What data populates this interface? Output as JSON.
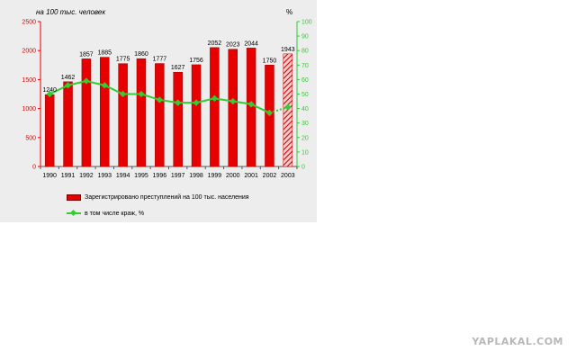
{
  "chart_data": {
    "type": "bar",
    "left_axis_label": "на 100 тыс. человек",
    "right_axis_label": "%",
    "categories": [
      "1990",
      "1991",
      "1992",
      "1993",
      "1994",
      "1995",
      "1996",
      "1997",
      "1998",
      "1999",
      "2000",
      "2001",
      "2002",
      "2003"
    ],
    "series": [
      {
        "name": "Зарегистрировано преступлений на 100 тыс. населения",
        "type": "bar",
        "axis": "left",
        "values": [
          1240,
          1462,
          1857,
          1885,
          1775,
          1860,
          1777,
          1627,
          1756,
          2052,
          2023,
          2044,
          1750,
          1943
        ],
        "labels": [
          "1240",
          "1462",
          "1857",
          "1885",
          "1775",
          "1860",
          "1777",
          "1627",
          "1756",
          "2052",
          "2023",
          "2044",
          "1750",
          "1943"
        ],
        "color": "#e60000",
        "last_bar_style": "hatched"
      },
      {
        "name": "в том числе краж, %",
        "type": "line",
        "axis": "right",
        "values": [
          50,
          56,
          59,
          56,
          50,
          50,
          46,
          44,
          44,
          47,
          45,
          43,
          37,
          41
        ],
        "color": "#33cc33"
      }
    ],
    "ylim_left": [
      0,
      2500
    ],
    "left_ticks": [
      "0",
      "500",
      "1000",
      "1500",
      "2000",
      "2500"
    ],
    "ylim_right": [
      0,
      100
    ],
    "right_ticks": [
      "0",
      "10",
      "20",
      "30",
      "40",
      "50",
      "60",
      "70",
      "80",
      "90",
      "100"
    ],
    "grid": false,
    "legend_position": "bottom"
  },
  "watermark": "YAPLAKAL.COM"
}
